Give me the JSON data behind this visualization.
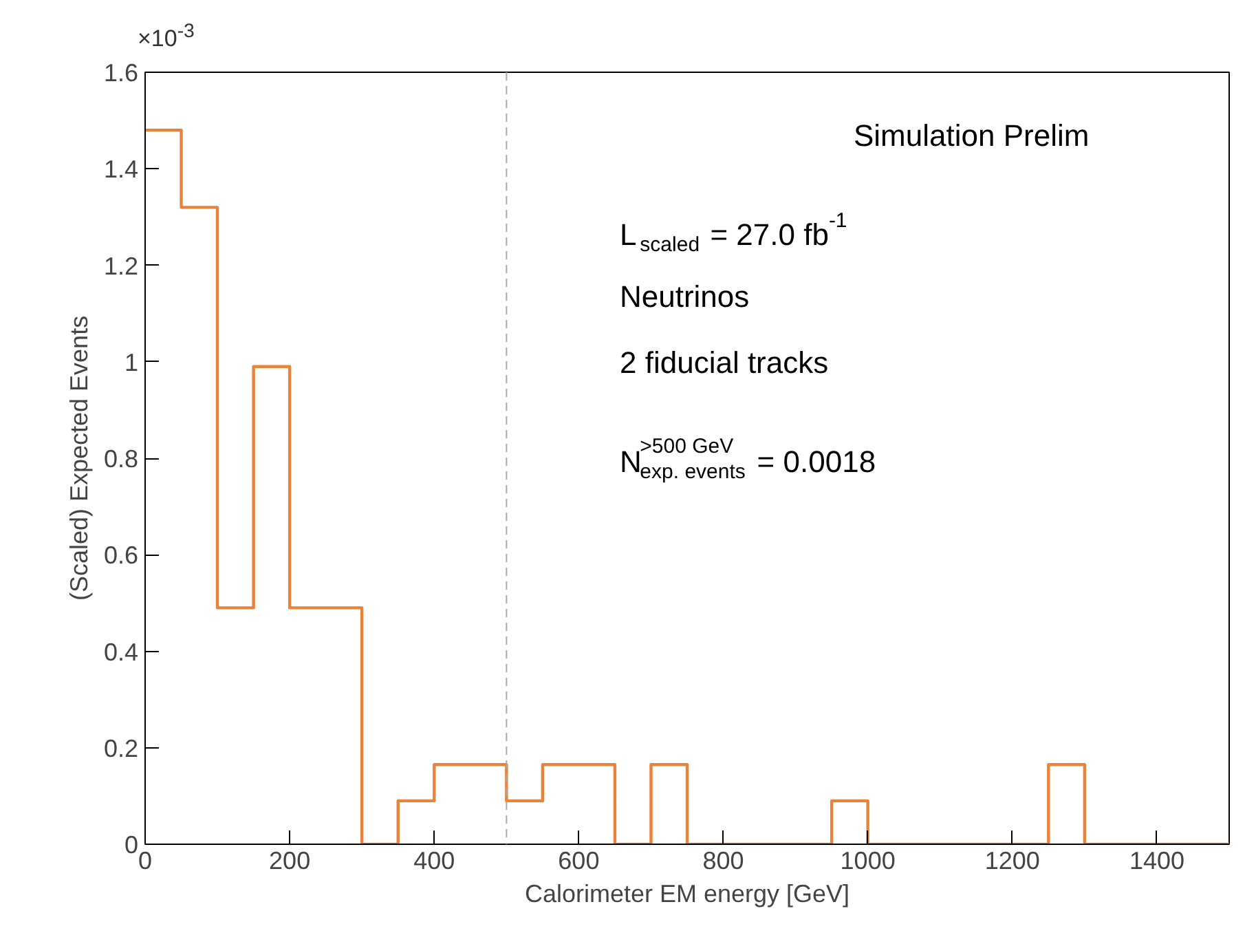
{
  "chart_data": {
    "type": "histogram",
    "xlabel": "Calorimeter EM energy [GeV]",
    "ylabel": "(Scaled) Expected Events",
    "bins": [
      0,
      50,
      100,
      150,
      200,
      250,
      300,
      350,
      400,
      450,
      500,
      550,
      600,
      650,
      700,
      750,
      800,
      850,
      900,
      950,
      1000,
      1050,
      1100,
      1150,
      1200,
      1250,
      1300,
      1350,
      1400,
      1450,
      1500
    ],
    "values": [
      1.48,
      1.32,
      0.49,
      0.99,
      0.49,
      0.49,
      0,
      0.09,
      0.165,
      0.165,
      0.09,
      0.165,
      0.165,
      0,
      0.165,
      0,
      0,
      0,
      0,
      0.09,
      0,
      0,
      0,
      0,
      0,
      0.165,
      0,
      0,
      0,
      0
    ],
    "color": "#e8833a",
    "xlim": [
      0,
      1500
    ],
    "xticks": [
      0,
      200,
      400,
      600,
      800,
      1000,
      1200,
      1400
    ],
    "ylim": [
      0,
      1.6
    ],
    "yticks": [
      0,
      0.2,
      0.4,
      0.6,
      0.8,
      1,
      1.2,
      1.4,
      1.6
    ],
    "ref_lines": [
      {
        "axis": "x",
        "value": 500,
        "color": "#aaaaaa",
        "line_style": "dashed"
      }
    ],
    "annotations": [
      "×10$^{-3}$",
      "Simulation Prelim",
      "L$_{scaled}$ = 27.0 fb$^{-1}$",
      "Neutrinos",
      "2 fiducial tracks",
      "N$^{>500 GeV}$$_{exp. events}$ = 0.0018"
    ],
    "grid": false
  }
}
